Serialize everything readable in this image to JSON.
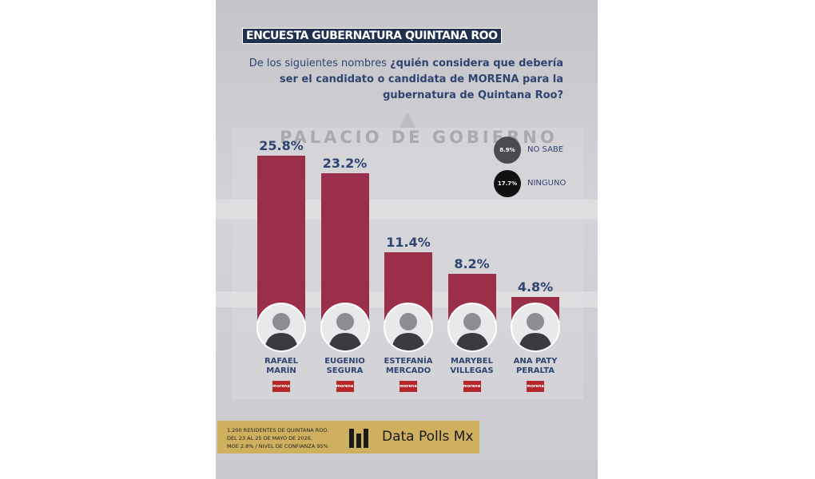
{
  "chart_data": {
    "type": "bar",
    "title": "ENCUESTA GUBERNATURA QUINTANA ROO",
    "question_intro": "De los siguientes nombres",
    "question_bold": "¿quién considera que debería ser el candidato o candidata de MORENA para la gubernatura de Quintana Roo?",
    "background_sign": "PALACIO DE GOBIERNO",
    "categories": [
      "RAFAEL MARÍN",
      "EUGENIO SEGURA",
      "ESTEFANÍA MERCADO",
      "MARYBEL VILLEGAS",
      "ANA PATY PERALTA"
    ],
    "values": [
      25.8,
      23.2,
      11.4,
      8.2,
      4.8
    ],
    "value_labels": [
      "25.8%",
      "23.2%",
      "11.4%",
      "8.2%",
      "4.8%"
    ],
    "color": "#9b2f4a",
    "party": "morena",
    "other_responses": {
      "categories": [
        "NO SABE",
        "NINGUNO"
      ],
      "values": [
        8.9,
        17.7
      ],
      "value_labels": [
        "8.9%",
        "17.7%"
      ],
      "colors": [
        "#4a4a4f",
        "#111111"
      ]
    },
    "footer": [
      "1,200 RESIDENTES DE QUINTANA ROO.",
      "DEL 23 AL 25 DE MAYO DE 2026.",
      "MOE 2.8% / NIVEL DE CONFIANZA 95%"
    ],
    "brand": "Data Polls Mx"
  }
}
